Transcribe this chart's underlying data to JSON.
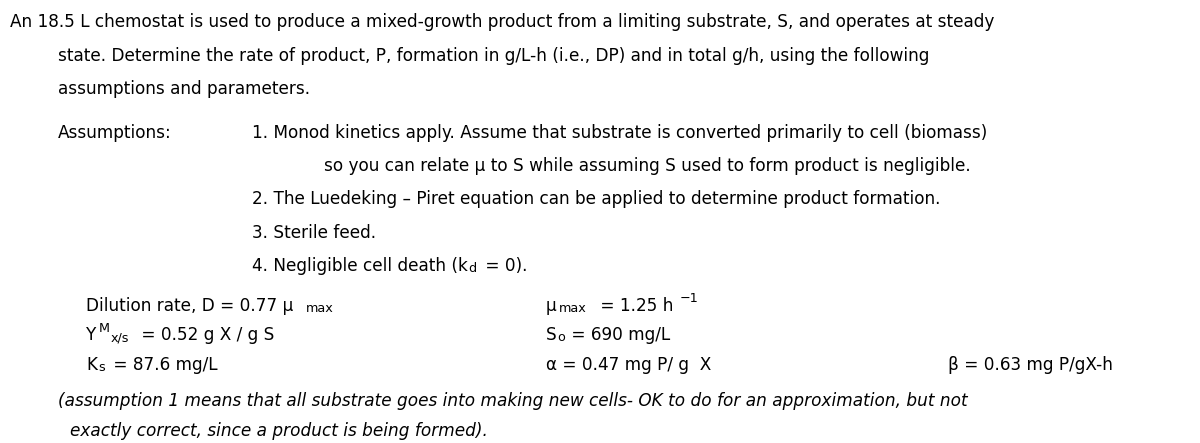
{
  "figsize": [
    12.0,
    4.43
  ],
  "dpi": 100,
  "bg_color": "#ffffff",
  "fs": 12.2
}
